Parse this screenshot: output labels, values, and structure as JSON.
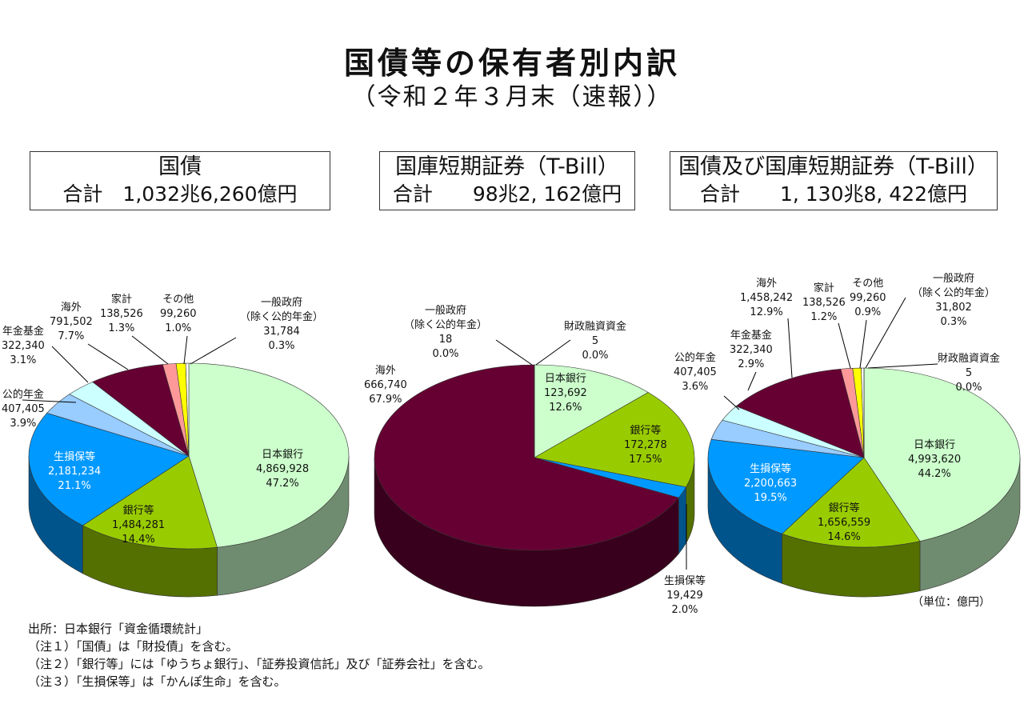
{
  "title": "国債等の保有者別内訳",
  "subtitle": "（令和２年３月末（速報））",
  "boxes": [
    {
      "title": "国債",
      "total": "合計　1,032兆6,260億円"
    },
    {
      "title": "国庫短期証券（T-Bill）",
      "total": "合計　　98兆2, 162億円"
    },
    {
      "title": "国債及び国庫短期証券（T-Bill）",
      "total": "合計　　1, 130兆8, 422億円"
    }
  ],
  "colors": {
    "日本銀行": "#ccffcc",
    "銀行等": "#99cc00",
    "生損保等": "#0099ff",
    "公的年金": "#99ccff",
    "年金基金": "#ccffff",
    "海外": "#660033",
    "家計": "#ff9999",
    "その他": "#ffff00",
    "一般政府": "#ffffff",
    "財政融資資金": "#ffffff"
  },
  "chart_data": [
    {
      "type": "pie",
      "title": "国債",
      "slices": [
        {
          "name": "日本銀行",
          "value": 4869928,
          "value_label": "4,869,928",
          "pct": "47.2%"
        },
        {
          "name": "銀行等",
          "value": 1484281,
          "value_label": "1,484,281",
          "pct": "14.4%"
        },
        {
          "name": "生損保等",
          "value": 2181234,
          "value_label": "2,181,234",
          "pct": "21.1%"
        },
        {
          "name": "公的年金",
          "value": 407405,
          "value_label": "407,405",
          "pct": "3.9%"
        },
        {
          "name": "年金基金",
          "value": 322340,
          "value_label": "322,340",
          "pct": "3.1%"
        },
        {
          "name": "海外",
          "value": 791502,
          "value_label": "791,502",
          "pct": "7.7%"
        },
        {
          "name": "家計",
          "value": 138526,
          "value_label": "138,526",
          "pct": "1.3%"
        },
        {
          "name": "その他",
          "value": 99260,
          "value_label": "99,260",
          "pct": "1.0%"
        },
        {
          "name": "一般政府\n（除く公的年金）",
          "value": 31784,
          "value_label": "31,784",
          "pct": "0.3%"
        }
      ]
    },
    {
      "type": "pie",
      "title": "国庫短期証券（T-Bill）",
      "slices": [
        {
          "name": "日本銀行",
          "value": 123692,
          "value_label": "123,692",
          "pct": "12.6%"
        },
        {
          "name": "銀行等",
          "value": 172278,
          "value_label": "172,278",
          "pct": "17.5%"
        },
        {
          "name": "生損保等",
          "value": 19429,
          "value_label": "19,429",
          "pct": "2.0%"
        },
        {
          "name": "海外",
          "value": 666740,
          "value_label": "666,740",
          "pct": "67.9%"
        },
        {
          "name": "一般政府\n（除く公的年金）",
          "value": 18,
          "value_label": "18",
          "pct": "0.0%"
        },
        {
          "name": "財政融資資金",
          "value": 5,
          "value_label": "5",
          "pct": "0.0%"
        }
      ]
    },
    {
      "type": "pie",
      "title": "国債及び国庫短期証券（T-Bill）",
      "slices": [
        {
          "name": "日本銀行",
          "value": 4993620,
          "value_label": "4,993,620",
          "pct": "44.2%"
        },
        {
          "name": "銀行等",
          "value": 1656559,
          "value_label": "1,656,559",
          "pct": "14.6%"
        },
        {
          "name": "生損保等",
          "value": 2200663,
          "value_label": "2,200,663",
          "pct": "19.5%"
        },
        {
          "name": "公的年金",
          "value": 407405,
          "value_label": "407,405",
          "pct": "3.6%"
        },
        {
          "name": "年金基金",
          "value": 322340,
          "value_label": "322,340",
          "pct": "2.9%"
        },
        {
          "name": "海外",
          "value": 1458242,
          "value_label": "1,458,242",
          "pct": "12.9%"
        },
        {
          "name": "家計",
          "value": 138526,
          "value_label": "138,526",
          "pct": "1.2%"
        },
        {
          "name": "その他",
          "value": 99260,
          "value_label": "99,260",
          "pct": "0.9%"
        },
        {
          "name": "一般政府\n（除く公的年金）",
          "value": 31802,
          "value_label": "31,802",
          "pct": "0.3%"
        },
        {
          "name": "財政融資資金",
          "value": 5,
          "value_label": "5",
          "pct": "0.0%"
        }
      ]
    }
  ],
  "unit": "（単位：億円）",
  "notes": [
    "出所：日本銀行「資金循環統計」",
    "（注１）「国債」は「財投債」を含む。",
    "（注２）「銀行等」には「ゆうちょ銀行」、「証券投資信託」及び「証券会社」を含む。",
    "（注３）「生損保等」は「かんぽ生命」を含む。"
  ]
}
